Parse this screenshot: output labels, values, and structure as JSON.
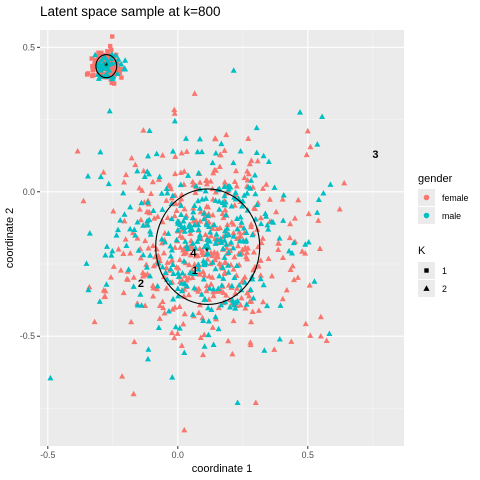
{
  "chart_data": {
    "type": "scatter",
    "title": "Latent space sample at k=800",
    "xlabel": "coordinate 1",
    "ylabel": "coordinate 2",
    "xlim": [
      -0.53,
      0.87
    ],
    "ylim": [
      -0.88,
      0.56
    ],
    "x_ticks": [
      {
        "value": -0.5,
        "label": "-0.5"
      },
      {
        "value": 0.0,
        "label": "0.0"
      },
      {
        "value": 0.5,
        "label": "0.5"
      }
    ],
    "y_ticks": [
      {
        "value": 0.5,
        "label": "0.5"
      },
      {
        "value": 0.0,
        "label": "0.0"
      },
      {
        "value": -0.5,
        "label": "-0.5"
      }
    ],
    "grid": true,
    "background": "#ebebeb",
    "legend_position": "right",
    "legend": {
      "color": {
        "title": "gender",
        "entries": [
          {
            "label": "female",
            "color": "#f8766d"
          },
          {
            "label": "male",
            "color": "#00bfc4"
          }
        ]
      },
      "shape": {
        "title": "K",
        "entries": [
          {
            "label": "1",
            "shape": "square"
          },
          {
            "label": "2",
            "shape": "triangle"
          }
        ]
      }
    },
    "circles": [
      {
        "cx": -0.275,
        "cy": 0.435,
        "r": 0.04
      },
      {
        "cx": 0.115,
        "cy": -0.19,
        "r": 0.2
      }
    ],
    "annotations": [
      {
        "label": "4",
        "x": 0.06,
        "y": -0.21
      },
      {
        "label": "1",
        "x": 0.066,
        "y": -0.27
      },
      {
        "label": "2",
        "x": -0.142,
        "y": -0.315
      },
      {
        "label": "3",
        "x": 0.76,
        "y": 0.13
      }
    ],
    "centers": [
      {
        "x": 0.112,
        "y": -0.205
      },
      {
        "x": -0.275,
        "y": 0.435
      }
    ],
    "series": [
      {
        "name": "female",
        "group": "dense cluster",
        "cx": -0.275,
        "cy": 0.435,
        "spread": 0.028,
        "n": 120,
        "shape": "square",
        "color": "#f8766d"
      },
      {
        "name": "male",
        "group": "dense cluster",
        "cx": -0.275,
        "cy": 0.435,
        "spread": 0.026,
        "n": 40,
        "shape": "triangle",
        "color": "#00bfc4"
      },
      {
        "name": "female",
        "group": "main cloud",
        "cx": 0.11,
        "cy": -0.18,
        "spread": 0.17,
        "n": 430,
        "shape": "triangle",
        "color": "#f8766d"
      },
      {
        "name": "male",
        "group": "main cloud",
        "cx": 0.1,
        "cy": -0.19,
        "spread": 0.175,
        "n": 310,
        "shape": "triangle",
        "color": "#00bfc4"
      }
    ],
    "outliers": [
      {
        "x": -0.49,
        "y": -0.645,
        "gender": "male",
        "shape": "triangle"
      },
      {
        "x": 0.215,
        "y": 0.42,
        "gender": "male",
        "shape": "triangle"
      },
      {
        "x": 0.47,
        "y": 0.275,
        "gender": "male",
        "shape": "triangle"
      },
      {
        "x": 0.555,
        "y": 0.26,
        "gender": "male",
        "shape": "triangle"
      },
      {
        "x": 0.5,
        "y": 0.21,
        "gender": "female",
        "shape": "triangle"
      },
      {
        "x": 0.51,
        "y": 0.155,
        "gender": "female",
        "shape": "triangle"
      },
      {
        "x": 0.64,
        "y": 0.03,
        "gender": "female",
        "shape": "triangle"
      },
      {
        "x": 0.55,
        "y": -0.5,
        "gender": "female",
        "shape": "triangle"
      },
      {
        "x": 0.56,
        "y": -0.005,
        "gender": "male",
        "shape": "triangle"
      },
      {
        "x": 0.025,
        "y": -0.825,
        "gender": "female",
        "shape": "triangle"
      },
      {
        "x": -0.17,
        "y": -0.7,
        "gender": "female",
        "shape": "triangle"
      },
      {
        "x": -0.32,
        "y": -0.45,
        "gender": "female",
        "shape": "triangle"
      },
      {
        "x": -0.3,
        "y": -0.38,
        "gender": "male",
        "shape": "triangle"
      },
      {
        "x": 0.065,
        "y": 0.34,
        "gender": "female",
        "shape": "triangle"
      },
      {
        "x": 0.3,
        "y": -0.73,
        "gender": "female",
        "shape": "triangle"
      },
      {
        "x": 0.23,
        "y": -0.73,
        "gender": "male",
        "shape": "triangle"
      }
    ]
  }
}
